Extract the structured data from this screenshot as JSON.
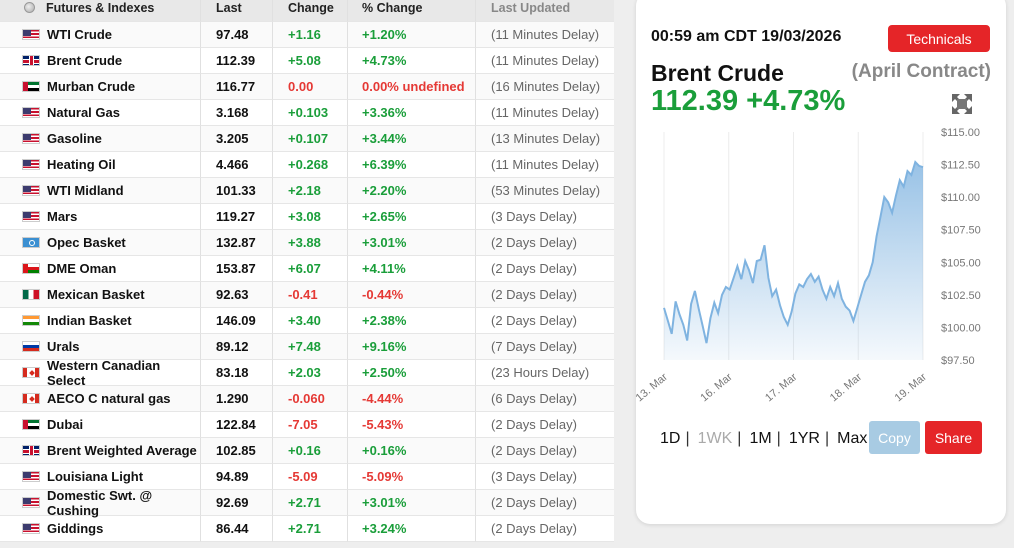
{
  "table": {
    "headers": {
      "name": "Futures & Indexes",
      "last": "Last",
      "change": "Change",
      "pct": "% Change",
      "updated": "Last Updated"
    },
    "rows": [
      {
        "name": "WTI Crude",
        "flag": "us",
        "last": "97.48",
        "change": "+1.16",
        "pct": "+1.20%",
        "updated": "(11 Minutes Delay)",
        "dir": "up"
      },
      {
        "name": "Brent Crude",
        "flag": "uk",
        "last": "112.39",
        "change": "+5.08",
        "pct": "+4.73%",
        "updated": "(11 Minutes Delay)",
        "dir": "up"
      },
      {
        "name": "Murban Crude",
        "flag": "ae",
        "last": "116.77",
        "change": "0.00",
        "pct": "0.00% undefined",
        "updated": "(16 Minutes Delay)",
        "dir": "down"
      },
      {
        "name": "Natural Gas",
        "flag": "us",
        "last": "3.168",
        "change": "+0.103",
        "pct": "+3.36%",
        "updated": "(11 Minutes Delay)",
        "dir": "up"
      },
      {
        "name": "Gasoline",
        "flag": "us",
        "last": "3.205",
        "change": "+0.107",
        "pct": "+3.44%",
        "updated": "(13 Minutes Delay)",
        "dir": "up"
      },
      {
        "name": "Heating Oil",
        "flag": "us",
        "last": "4.466",
        "change": "+0.268",
        "pct": "+6.39%",
        "updated": "(11 Minutes Delay)",
        "dir": "up"
      },
      {
        "name": "WTI Midland",
        "flag": "us",
        "last": "101.33",
        "change": "+2.18",
        "pct": "+2.20%",
        "updated": "(53 Minutes Delay)",
        "dir": "up"
      },
      {
        "name": "Mars",
        "flag": "us",
        "last": "119.27",
        "change": "+3.08",
        "pct": "+2.65%",
        "updated": "(3 Days Delay)",
        "dir": "up"
      },
      {
        "name": "Opec Basket",
        "flag": "opec",
        "last": "132.87",
        "change": "+3.88",
        "pct": "+3.01%",
        "updated": "(2 Days Delay)",
        "dir": "up"
      },
      {
        "name": "DME Oman",
        "flag": "om",
        "last": "153.87",
        "change": "+6.07",
        "pct": "+4.11%",
        "updated": "(2 Days Delay)",
        "dir": "up"
      },
      {
        "name": "Mexican Basket",
        "flag": "mx",
        "last": "92.63",
        "change": "-0.41",
        "pct": "-0.44%",
        "updated": "(2 Days Delay)",
        "dir": "down"
      },
      {
        "name": "Indian Basket",
        "flag": "in",
        "last": "146.09",
        "change": "+3.40",
        "pct": "+2.38%",
        "updated": "(2 Days Delay)",
        "dir": "up"
      },
      {
        "name": "Urals",
        "flag": "ru",
        "last": "89.12",
        "change": "+7.48",
        "pct": "+9.16%",
        "updated": "(7 Days Delay)",
        "dir": "up"
      },
      {
        "name": "Western Canadian Select",
        "flag": "ca",
        "last": "83.18",
        "change": "+2.03",
        "pct": "+2.50%",
        "updated": "(23 Hours Delay)",
        "dir": "up"
      },
      {
        "name": "AECO C natural gas",
        "flag": "ca",
        "last": "1.290",
        "change": "-0.060",
        "pct": "-4.44%",
        "updated": "(6 Days Delay)",
        "dir": "down"
      },
      {
        "name": "Dubai",
        "flag": "ae",
        "last": "122.84",
        "change": "-7.05",
        "pct": "-5.43%",
        "updated": "(2 Days Delay)",
        "dir": "down"
      },
      {
        "name": "Brent Weighted Average",
        "flag": "uk",
        "last": "102.85",
        "change": "+0.16",
        "pct": "+0.16%",
        "updated": "(2 Days Delay)",
        "dir": "up"
      },
      {
        "name": "Louisiana Light",
        "flag": "us",
        "last": "94.89",
        "change": "-5.09",
        "pct": "-5.09%",
        "updated": "(3 Days Delay)",
        "dir": "down"
      },
      {
        "name": "Domestic Swt. @ Cushing",
        "flag": "us",
        "last": "92.69",
        "change": "+2.71",
        "pct": "+3.01%",
        "updated": "(2 Days Delay)",
        "dir": "up"
      },
      {
        "name": "Giddings",
        "flag": "us",
        "last": "86.44",
        "change": "+2.71",
        "pct": "+3.24%",
        "updated": "(2 Days Delay)",
        "dir": "up"
      }
    ]
  },
  "panel": {
    "timestamp": "00:59 am CDT 19/03/2026",
    "technicals_label": "Technicals",
    "name": "Brent Crude",
    "contract": "(April Contract)",
    "price_line": "112.39 +4.73%",
    "expand_icon": "expand-arrows-icon",
    "ranges": [
      "1D",
      "1WK",
      "1M",
      "1YR",
      "Max"
    ],
    "active_range": "1WK",
    "copy_label": "Copy",
    "share_label": "Share"
  },
  "colors": {
    "up": "#1a9e3a",
    "down": "#e53935",
    "accent": "#e52528",
    "line": "#7fb3e0"
  },
  "chart_data": {
    "type": "area",
    "x_ticks": [
      "13. Mar",
      "16. Mar",
      "17. Mar",
      "18. Mar",
      "19. Mar"
    ],
    "y_ticks": [
      "$115.00",
      "$112.50",
      "$110.00",
      "$107.50",
      "$105.00",
      "$102.50",
      "$100.00",
      "$97.50"
    ],
    "ylim": [
      97.5,
      115
    ],
    "values": [
      101.5,
      100.5,
      99.5,
      102,
      101,
      100.2,
      99,
      101.8,
      102.8,
      101.4,
      100.1,
      98.8,
      100.7,
      101.9,
      101.1,
      102.5,
      103.1,
      102.9,
      103.8,
      104.7,
      103.7,
      105.1,
      104.4,
      103.4,
      105.1,
      105.2,
      106.3,
      103.8,
      102.4,
      102.9,
      101.7,
      100.8,
      100.2,
      101.2,
      102.6,
      103.3,
      103.1,
      103.7,
      104.1,
      103.5,
      103.9,
      102.9,
      102.2,
      103.1,
      102.4,
      103.4,
      102.2,
      101.6,
      101.3,
      100.5,
      101.5,
      102.5,
      103.5,
      104,
      105,
      107,
      108.5,
      110,
      109.6,
      108.8,
      110.1,
      111.3,
      110.8,
      112,
      111.7,
      112.7,
      112.4,
      112.3
    ]
  }
}
